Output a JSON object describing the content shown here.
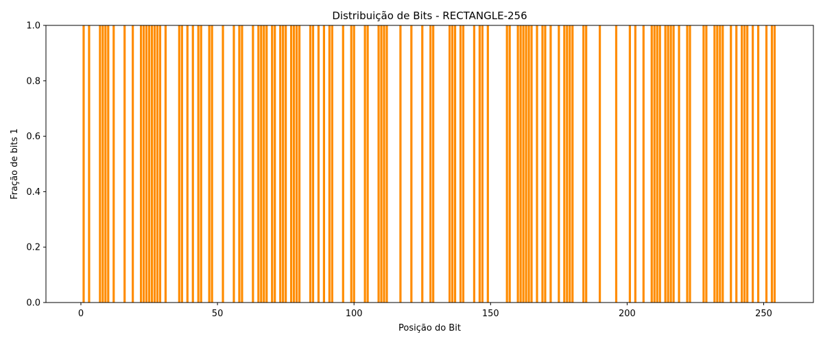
{
  "chart_data": {
    "type": "bar",
    "title": "Distribuição de Bits - RECTANGLE-256",
    "xlabel": "Posição do Bit",
    "ylabel": "Fração de bits 1",
    "xlim": [
      -12.8,
      268.2
    ],
    "ylim": [
      0,
      1.0
    ],
    "xticks": [
      0,
      50,
      100,
      150,
      200,
      250
    ],
    "yticks": [
      0.0,
      0.2,
      0.4,
      0.6,
      0.8,
      1.0
    ],
    "xtick_labels": [
      "0",
      "50",
      "100",
      "150",
      "200",
      "250"
    ],
    "ytick_labels": [
      "0.0",
      "0.2",
      "0.4",
      "0.6",
      "0.8",
      "1.0"
    ],
    "bar_color": "#ff8c00",
    "grid": false,
    "positions": [
      1,
      3,
      7,
      8,
      9,
      10,
      12,
      16,
      19,
      22,
      23,
      24,
      25,
      26,
      27,
      28,
      29,
      31,
      36,
      37,
      39,
      41,
      43,
      44,
      47,
      48,
      52,
      56,
      58,
      59,
      63,
      65,
      66,
      67,
      68,
      70,
      71,
      73,
      74,
      75,
      77,
      78,
      79,
      80,
      84,
      85,
      87,
      89,
      91,
      92,
      96,
      99,
      100,
      104,
      105,
      109,
      110,
      111,
      112,
      117,
      121,
      125,
      128,
      129,
      135,
      136,
      137,
      139,
      140,
      144,
      146,
      147,
      149,
      156,
      157,
      160,
      161,
      162,
      163,
      164,
      165,
      167,
      169,
      170,
      172,
      175,
      177,
      178,
      179,
      180,
      184,
      185,
      190,
      196,
      201,
      203,
      206,
      209,
      210,
      211,
      212,
      214,
      215,
      216,
      217,
      219,
      222,
      223,
      228,
      229,
      232,
      233,
      234,
      235,
      238,
      240,
      242,
      243,
      244,
      246,
      248,
      251,
      253,
      254
    ],
    "value": 1.0,
    "bar_width": 0.8
  }
}
